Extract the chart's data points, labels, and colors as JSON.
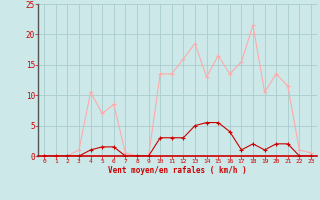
{
  "hours": [
    0,
    1,
    2,
    3,
    4,
    5,
    6,
    7,
    8,
    9,
    10,
    11,
    12,
    13,
    14,
    15,
    16,
    17,
    18,
    19,
    20,
    21,
    22,
    23
  ],
  "wind_avg": [
    0,
    0,
    0,
    0,
    1,
    1.5,
    1.5,
    0,
    0,
    0,
    3,
    3,
    3,
    5,
    5.5,
    5.5,
    4,
    1,
    2,
    1,
    2,
    2,
    0,
    0
  ],
  "wind_gust": [
    0,
    0,
    0,
    1,
    10.5,
    7,
    8.5,
    0.5,
    0,
    0,
    13.5,
    13.5,
    16,
    18.5,
    13,
    16.5,
    13.5,
    15.5,
    21.5,
    10.5,
    13.5,
    11.5,
    1,
    0.5
  ],
  "wind_avg_color": "#cc0000",
  "wind_gust_color": "#ffaaaa",
  "bg_color": "#cce8e8",
  "grid_color": "#aacccc",
  "xlabel": "Vent moyen/en rafales ( km/h )",
  "xlabel_color": "#cc0000",
  "tick_color": "#cc0000",
  "ylim": [
    0,
    25
  ],
  "xlim": [
    -0.5,
    23.5
  ],
  "yticks": [
    0,
    5,
    10,
    15,
    20,
    25
  ],
  "xticks": [
    0,
    1,
    2,
    3,
    4,
    5,
    6,
    7,
    8,
    9,
    10,
    11,
    12,
    13,
    14,
    15,
    16,
    17,
    18,
    19,
    20,
    21,
    22,
    23
  ]
}
